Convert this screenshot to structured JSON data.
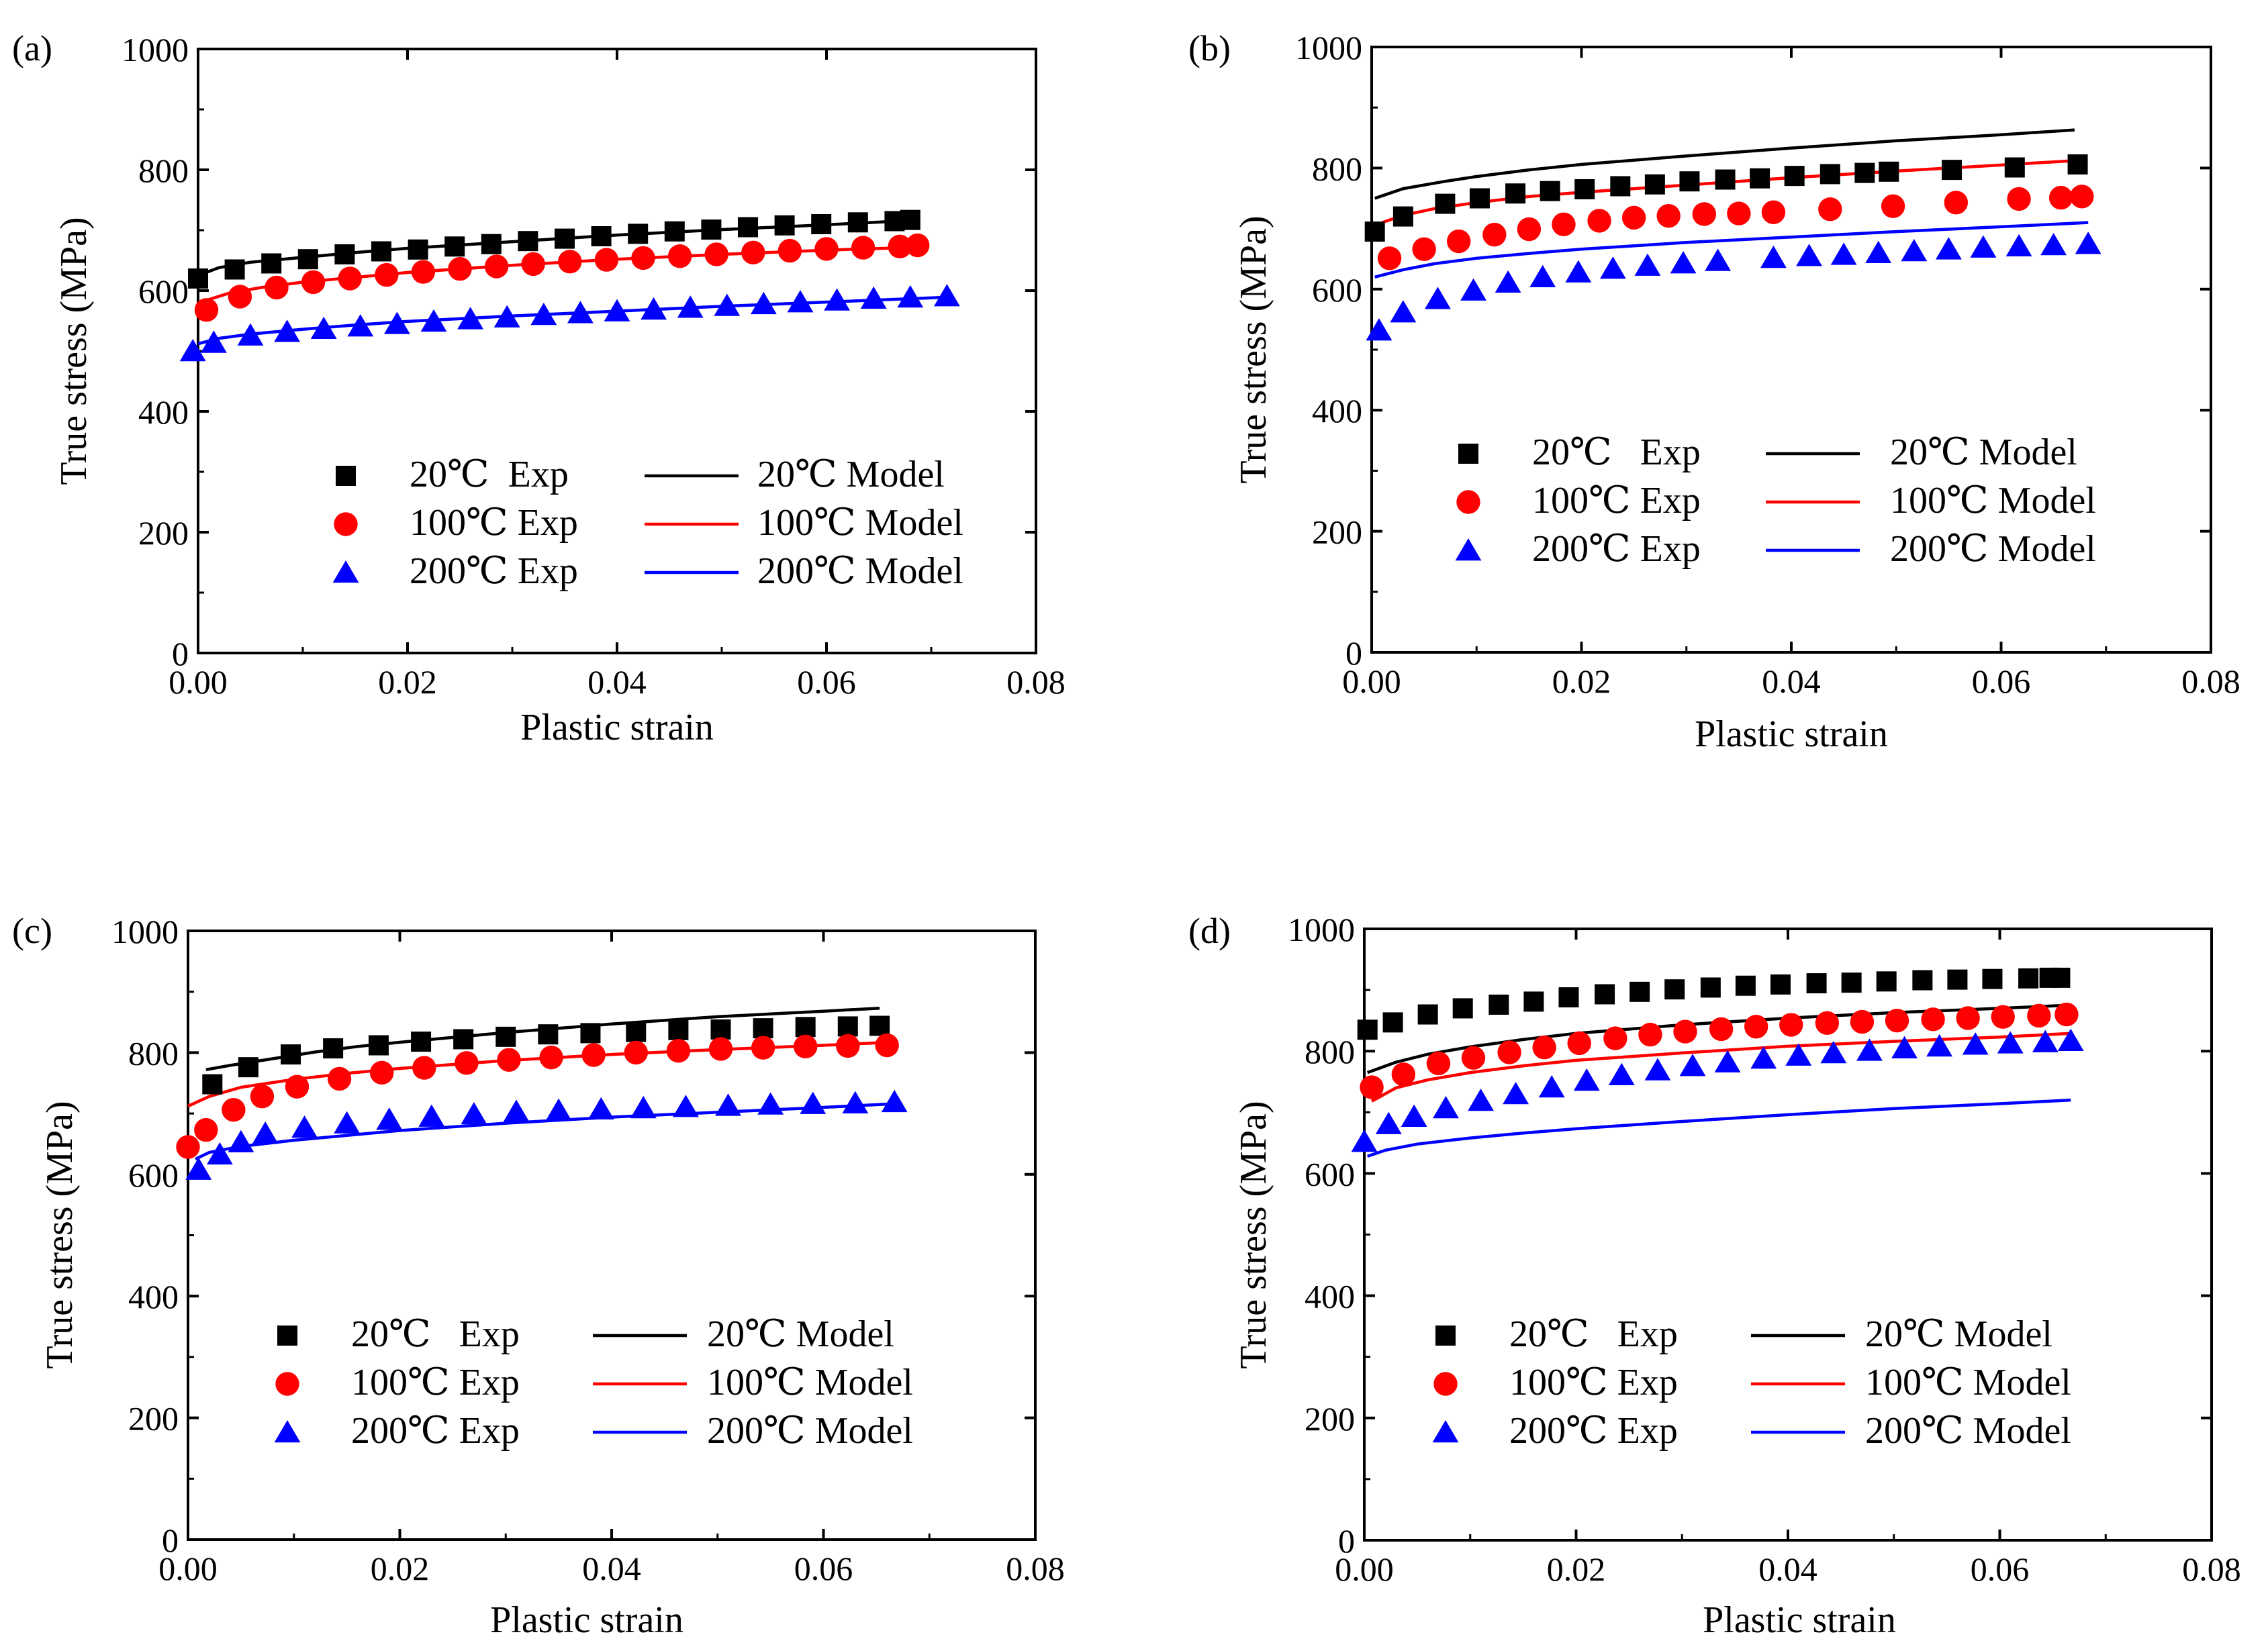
{
  "chart_data": [
    {
      "type": "scatter",
      "panel_label": "(a)",
      "xlabel": "Plastic strain",
      "ylabel": "True stress (MPa)",
      "xlim": [
        0.0,
        0.08
      ],
      "ylim": [
        0,
        1000
      ],
      "xticks": [
        "0.00",
        "0.02",
        "0.04",
        "0.06",
        "0.08"
      ],
      "yticks": [
        "0",
        "200",
        "400",
        "600",
        "800",
        "1000"
      ],
      "legend_position": "bottom-right",
      "series": [
        {
          "name": "20℃  Exp",
          "kind": "exp",
          "marker": "square",
          "color": "#000000",
          "x": [
            0.0,
            0.0035,
            0.007,
            0.0105,
            0.014,
            0.0175,
            0.021,
            0.0245,
            0.028,
            0.0315,
            0.035,
            0.0385,
            0.042,
            0.0455,
            0.049,
            0.0525,
            0.056,
            0.0595,
            0.063,
            0.0665,
            0.068
          ],
          "y": [
            620,
            635,
            645,
            652,
            660,
            665,
            668,
            673,
            677,
            682,
            686,
            690,
            694,
            698,
            701,
            705,
            708,
            710,
            713,
            715,
            717
          ]
        },
        {
          "name": "100℃ Exp",
          "kind": "exp",
          "marker": "circle",
          "color": "#ff0000",
          "x": [
            0.0008,
            0.004,
            0.0075,
            0.011,
            0.0145,
            0.018,
            0.0215,
            0.025,
            0.0285,
            0.032,
            0.0355,
            0.039,
            0.0425,
            0.046,
            0.0495,
            0.053,
            0.0565,
            0.06,
            0.0635,
            0.067,
            0.0687
          ],
          "y": [
            568,
            590,
            605,
            614,
            620,
            626,
            631,
            636,
            640,
            644,
            648,
            651,
            654,
            657,
            660,
            663,
            666,
            669,
            671,
            673,
            675
          ]
        },
        {
          "name": "200℃ Exp",
          "kind": "exp",
          "marker": "triangle",
          "color": "#0000ff",
          "x": [
            -0.0005,
            0.0015,
            0.005,
            0.0085,
            0.012,
            0.0155,
            0.019,
            0.0225,
            0.026,
            0.0295,
            0.033,
            0.0365,
            0.04,
            0.0435,
            0.047,
            0.0505,
            0.054,
            0.0575,
            0.061,
            0.0645,
            0.068,
            0.0715
          ],
          "y": [
            500,
            514,
            526,
            532,
            537,
            541,
            545,
            549,
            553,
            556,
            560,
            563,
            566,
            569,
            572,
            575,
            578,
            581,
            584,
            587,
            589,
            591
          ]
        },
        {
          "name": "20℃ Model",
          "kind": "model",
          "color": "#000000",
          "x": [
            0.0,
            0.002,
            0.005,
            0.01,
            0.015,
            0.02,
            0.03,
            0.04,
            0.05,
            0.06,
            0.068
          ],
          "y": [
            625,
            638,
            647,
            655,
            663,
            670,
            681,
            692,
            701,
            709,
            716
          ]
        },
        {
          "name": "100℃ Model",
          "kind": "model",
          "color": "#ff0000",
          "x": [
            0.001,
            0.003,
            0.006,
            0.01,
            0.015,
            0.02,
            0.03,
            0.04,
            0.05,
            0.06,
            0.069
          ],
          "y": [
            585,
            596,
            605,
            614,
            622,
            630,
            642,
            652,
            660,
            667,
            672
          ]
        },
        {
          "name": "200℃ Model",
          "kind": "model",
          "color": "#0000ff",
          "x": [
            0.0,
            0.002,
            0.005,
            0.01,
            0.015,
            0.02,
            0.03,
            0.04,
            0.05,
            0.06,
            0.0715
          ],
          "y": [
            512,
            521,
            528,
            536,
            543,
            549,
            558,
            566,
            574,
            581,
            589
          ]
        }
      ]
    },
    {
      "type": "scatter",
      "panel_label": "(b)",
      "xlabel": "Plastic strain",
      "ylabel": "True stress (MPa)",
      "xlim": [
        0.0,
        0.08
      ],
      "ylim": [
        0,
        1000
      ],
      "xticks": [
        "0.00",
        "0.02",
        "0.04",
        "0.06",
        "0.08"
      ],
      "yticks": [
        "0",
        "200",
        "400",
        "600",
        "800",
        "1000"
      ],
      "legend_position": "bottom-right",
      "series": [
        {
          "name": "20℃   Exp",
          "kind": "exp",
          "marker": "square",
          "color": "#000000",
          "x": [
            0.0003,
            0.003,
            0.007,
            0.0103,
            0.0137,
            0.017,
            0.0203,
            0.0237,
            0.027,
            0.0303,
            0.0337,
            0.037,
            0.0403,
            0.0437,
            0.047,
            0.0493,
            0.0553,
            0.0613,
            0.0673
          ],
          "y": [
            695,
            720,
            741,
            750,
            758,
            762,
            765,
            770,
            773,
            778,
            781,
            783,
            787,
            790,
            792,
            794,
            797,
            801,
            806
          ]
        },
        {
          "name": "100℃ Exp",
          "kind": "exp",
          "marker": "circle",
          "color": "#ff0000",
          "x": [
            0.0017,
            0.005,
            0.0083,
            0.0117,
            0.015,
            0.0183,
            0.0217,
            0.025,
            0.0283,
            0.0317,
            0.035,
            0.0383,
            0.0437,
            0.0497,
            0.0557,
            0.0617,
            0.0657,
            0.0677
          ],
          "y": [
            651,
            666,
            679,
            690,
            699,
            707,
            713,
            718,
            721,
            724,
            725,
            727,
            732,
            737,
            743,
            749,
            751,
            753
          ]
        },
        {
          "name": "200℃ Exp",
          "kind": "exp",
          "marker": "triangle",
          "color": "#0000ff",
          "x": [
            0.0007,
            0.003,
            0.0063,
            0.0097,
            0.013,
            0.0163,
            0.0197,
            0.023,
            0.0263,
            0.0297,
            0.033,
            0.0383,
            0.0417,
            0.045,
            0.0483,
            0.0517,
            0.055,
            0.0583,
            0.0617,
            0.065,
            0.0683
          ],
          "y": [
            532,
            562,
            584,
            598,
            611,
            620,
            628,
            634,
            639,
            643,
            647,
            652,
            655,
            657,
            660,
            663,
            666,
            669,
            671,
            673,
            675
          ]
        },
        {
          "name": "20℃ Model",
          "kind": "model",
          "color": "#000000",
          "x": [
            0.0003,
            0.003,
            0.007,
            0.01,
            0.015,
            0.02,
            0.03,
            0.04,
            0.05,
            0.06,
            0.067
          ],
          "y": [
            750,
            766,
            778,
            786,
            797,
            806,
            820,
            833,
            845,
            855,
            863
          ]
        },
        {
          "name": "100℃ Model",
          "kind": "model",
          "color": "#ff0000",
          "x": [
            0.001,
            0.003,
            0.006,
            0.01,
            0.015,
            0.02,
            0.03,
            0.04,
            0.05,
            0.06,
            0.0677
          ],
          "y": [
            710,
            722,
            733,
            743,
            753,
            760,
            772,
            784,
            795,
            805,
            813
          ]
        },
        {
          "name": "200℃ Model",
          "kind": "model",
          "color": "#0000ff",
          "x": [
            0.0003,
            0.003,
            0.006,
            0.01,
            0.015,
            0.02,
            0.03,
            0.04,
            0.05,
            0.06,
            0.0683
          ],
          "y": [
            620,
            632,
            642,
            651,
            659,
            666,
            677,
            686,
            695,
            703,
            710
          ]
        }
      ]
    },
    {
      "type": "scatter",
      "panel_label": "(c)",
      "xlabel": "Plastic strain",
      "ylabel": "True stress (MPa)",
      "xlim": [
        0.0,
        0.08
      ],
      "ylim": [
        0,
        1000
      ],
      "xticks": [
        "0.00",
        "0.02",
        "0.04",
        "0.06",
        "0.08"
      ],
      "yticks": [
        "0",
        "200",
        "400",
        "600",
        "800",
        "1000"
      ],
      "legend_position": "bottom-right",
      "series": [
        {
          "name": "20℃   Exp",
          "kind": "exp",
          "marker": "square",
          "color": "#000000",
          "x": [
            0.0023,
            0.0057,
            0.0097,
            0.0137,
            0.018,
            0.022,
            0.026,
            0.03,
            0.034,
            0.038,
            0.0423,
            0.0463,
            0.0503,
            0.0543,
            0.0583,
            0.0623,
            0.0653
          ],
          "y": [
            748,
            776,
            797,
            807,
            812,
            818,
            822,
            826,
            830,
            832,
            834,
            837,
            838,
            840,
            842,
            843,
            844
          ]
        },
        {
          "name": "100℃ Exp",
          "kind": "exp",
          "marker": "circle",
          "color": "#ff0000",
          "x": [
            0.0,
            0.0017,
            0.0043,
            0.007,
            0.0103,
            0.0143,
            0.0183,
            0.0223,
            0.0263,
            0.0303,
            0.0343,
            0.0383,
            0.0423,
            0.0463,
            0.0503,
            0.0543,
            0.0583,
            0.0623,
            0.066
          ],
          "y": [
            645,
            673,
            706,
            728,
            744,
            757,
            767,
            775,
            783,
            788,
            792,
            796,
            800,
            803,
            806,
            808,
            810,
            811,
            812
          ]
        },
        {
          "name": "200℃ Exp",
          "kind": "exp",
          "marker": "triangle",
          "color": "#0000ff",
          "x": [
            0.001,
            0.003,
            0.005,
            0.0073,
            0.011,
            0.015,
            0.019,
            0.023,
            0.027,
            0.031,
            0.035,
            0.039,
            0.043,
            0.047,
            0.051,
            0.055,
            0.059,
            0.063,
            0.0667
          ],
          "y": [
            608,
            633,
            653,
            667,
            677,
            684,
            690,
            695,
            699,
            703,
            705,
            707,
            709,
            711,
            713,
            715,
            716,
            717,
            719
          ]
        },
        {
          "name": "20℃ Model",
          "kind": "model",
          "color": "#000000",
          "x": [
            0.0017,
            0.004,
            0.008,
            0.012,
            0.016,
            0.02,
            0.03,
            0.04,
            0.05,
            0.06,
            0.0653
          ],
          "y": [
            772,
            779,
            790,
            801,
            810,
            817,
            833,
            847,
            859,
            868,
            873
          ]
        },
        {
          "name": "100℃ Model",
          "kind": "model",
          "color": "#ff0000",
          "x": [
            0.0,
            0.002,
            0.005,
            0.01,
            0.015,
            0.02,
            0.03,
            0.04,
            0.05,
            0.06,
            0.0663
          ],
          "y": [
            712,
            728,
            743,
            756,
            766,
            774,
            787,
            797,
            805,
            812,
            817
          ]
        },
        {
          "name": "200℃ Model",
          "kind": "model",
          "color": "#0000ff",
          "x": [
            0.0007,
            0.002,
            0.005,
            0.01,
            0.015,
            0.02,
            0.03,
            0.04,
            0.05,
            0.06,
            0.0667
          ],
          "y": [
            625,
            636,
            646,
            656,
            664,
            672,
            684,
            694,
            702,
            710,
            716
          ]
        }
      ]
    },
    {
      "type": "scatter",
      "panel_label": "(d)",
      "xlabel": "Plastic strain",
      "ylabel": "True stress (MPa)",
      "xlim": [
        0.0,
        0.08
      ],
      "ylim": [
        0,
        1000
      ],
      "xticks": [
        "0.00",
        "0.02",
        "0.04",
        "0.06",
        "0.08"
      ],
      "yticks": [
        "0",
        "200",
        "400",
        "600",
        "800",
        "1000"
      ],
      "legend_position": "bottom-right",
      "series": [
        {
          "name": "20℃   Exp",
          "kind": "exp",
          "marker": "square",
          "color": "#000000",
          "x": [
            0.0003,
            0.0027,
            0.006,
            0.0093,
            0.0127,
            0.016,
            0.0193,
            0.0227,
            0.026,
            0.0293,
            0.0327,
            0.036,
            0.0393,
            0.0427,
            0.046,
            0.0493,
            0.0527,
            0.056,
            0.0593,
            0.0627,
            0.0647,
            0.0657
          ],
          "y": [
            835,
            847,
            860,
            870,
            876,
            881,
            888,
            893,
            897,
            901,
            904,
            907,
            909,
            911,
            912,
            914,
            916,
            917,
            918,
            919,
            920,
            920
          ]
        },
        {
          "name": "100℃ Exp",
          "kind": "exp",
          "marker": "circle",
          "color": "#ff0000",
          "x": [
            0.0007,
            0.0037,
            0.007,
            0.0103,
            0.0137,
            0.017,
            0.0203,
            0.0237,
            0.027,
            0.0303,
            0.0337,
            0.037,
            0.0403,
            0.0437,
            0.047,
            0.0503,
            0.0537,
            0.057,
            0.0603,
            0.0637,
            0.0663
          ],
          "y": [
            741,
            762,
            780,
            789,
            798,
            806,
            813,
            821,
            827,
            832,
            836,
            840,
            843,
            846,
            848,
            850,
            852,
            854,
            856,
            858,
            860
          ]
        },
        {
          "name": "200℃ Exp",
          "kind": "exp",
          "marker": "triangle",
          "color": "#0000ff",
          "x": [
            0.0,
            0.0023,
            0.0047,
            0.0077,
            0.011,
            0.0143,
            0.0177,
            0.021,
            0.0243,
            0.0277,
            0.031,
            0.0343,
            0.0377,
            0.041,
            0.0443,
            0.0477,
            0.051,
            0.0543,
            0.0577,
            0.061,
            0.0643,
            0.0667
          ],
          "y": [
            652,
            681,
            693,
            707,
            719,
            730,
            741,
            752,
            761,
            769,
            776,
            782,
            788,
            793,
            797,
            801,
            805,
            808,
            811,
            813,
            815,
            817
          ]
        },
        {
          "name": "20℃ Model",
          "kind": "model",
          "color": "#000000",
          "x": [
            0.0003,
            0.003,
            0.006,
            0.01,
            0.015,
            0.02,
            0.03,
            0.04,
            0.05,
            0.06,
            0.0663
          ],
          "y": [
            765,
            782,
            795,
            807,
            819,
            829,
            843,
            854,
            863,
            870,
            875
          ]
        },
        {
          "name": "100℃ Model",
          "kind": "model",
          "color": "#ff0000",
          "x": [
            0.0007,
            0.003,
            0.006,
            0.01,
            0.015,
            0.02,
            0.03,
            0.04,
            0.05,
            0.06,
            0.0667
          ],
          "y": [
            718,
            740,
            753,
            765,
            776,
            785,
            797,
            808,
            816,
            823,
            829
          ]
        },
        {
          "name": "200℃ Model",
          "kind": "model",
          "color": "#0000ff",
          "x": [
            0.0003,
            0.002,
            0.005,
            0.01,
            0.015,
            0.02,
            0.03,
            0.04,
            0.05,
            0.06,
            0.0667
          ],
          "y": [
            628,
            638,
            648,
            658,
            666,
            673,
            685,
            696,
            706,
            714,
            720
          ]
        }
      ]
    }
  ]
}
